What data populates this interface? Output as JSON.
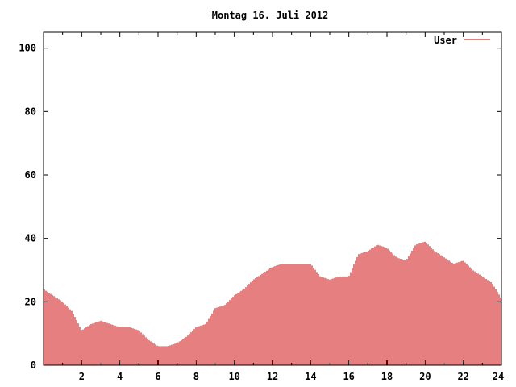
{
  "chart_data": {
    "type": "bar",
    "title": "Montag 16. Juli 2012",
    "xlabel": "",
    "ylabel": "",
    "xlim": [
      0,
      24
    ],
    "ylim": [
      0,
      105
    ],
    "x_ticks": [
      2,
      4,
      6,
      8,
      10,
      12,
      14,
      16,
      18,
      20,
      22,
      24
    ],
    "y_ticks": [
      0,
      20,
      40,
      60,
      80,
      100
    ],
    "grid": false,
    "legend_position": "top-right",
    "series": [
      {
        "name": "User",
        "color": "#cc0000",
        "points": [
          [
            0.0,
            24
          ],
          [
            0.5,
            22
          ],
          [
            1.0,
            20
          ],
          [
            1.5,
            17
          ],
          [
            2.0,
            11
          ],
          [
            2.5,
            13
          ],
          [
            3.0,
            14
          ],
          [
            3.5,
            13
          ],
          [
            4.0,
            12
          ],
          [
            4.5,
            12
          ],
          [
            5.0,
            11
          ],
          [
            5.5,
            8
          ],
          [
            6.0,
            6
          ],
          [
            6.5,
            6
          ],
          [
            7.0,
            7
          ],
          [
            7.5,
            9
          ],
          [
            8.0,
            12
          ],
          [
            8.5,
            13
          ],
          [
            9.0,
            18
          ],
          [
            9.5,
            19
          ],
          [
            10.0,
            22
          ],
          [
            10.5,
            24
          ],
          [
            11.0,
            27
          ],
          [
            11.5,
            29
          ],
          [
            12.0,
            31
          ],
          [
            12.5,
            32
          ],
          [
            13.0,
            32
          ],
          [
            13.5,
            32
          ],
          [
            14.0,
            32
          ],
          [
            14.5,
            28
          ],
          [
            15.0,
            27
          ],
          [
            15.5,
            28
          ],
          [
            16.0,
            28
          ],
          [
            16.5,
            35
          ],
          [
            17.0,
            36
          ],
          [
            17.5,
            38
          ],
          [
            18.0,
            37
          ],
          [
            18.5,
            34
          ],
          [
            19.0,
            33
          ],
          [
            19.5,
            38
          ],
          [
            20.0,
            39
          ],
          [
            20.5,
            36
          ],
          [
            21.0,
            34
          ],
          [
            21.5,
            32
          ],
          [
            22.0,
            33
          ],
          [
            22.5,
            30
          ],
          [
            23.0,
            28
          ],
          [
            23.5,
            26
          ],
          [
            24.0,
            21
          ]
        ]
      }
    ]
  }
}
